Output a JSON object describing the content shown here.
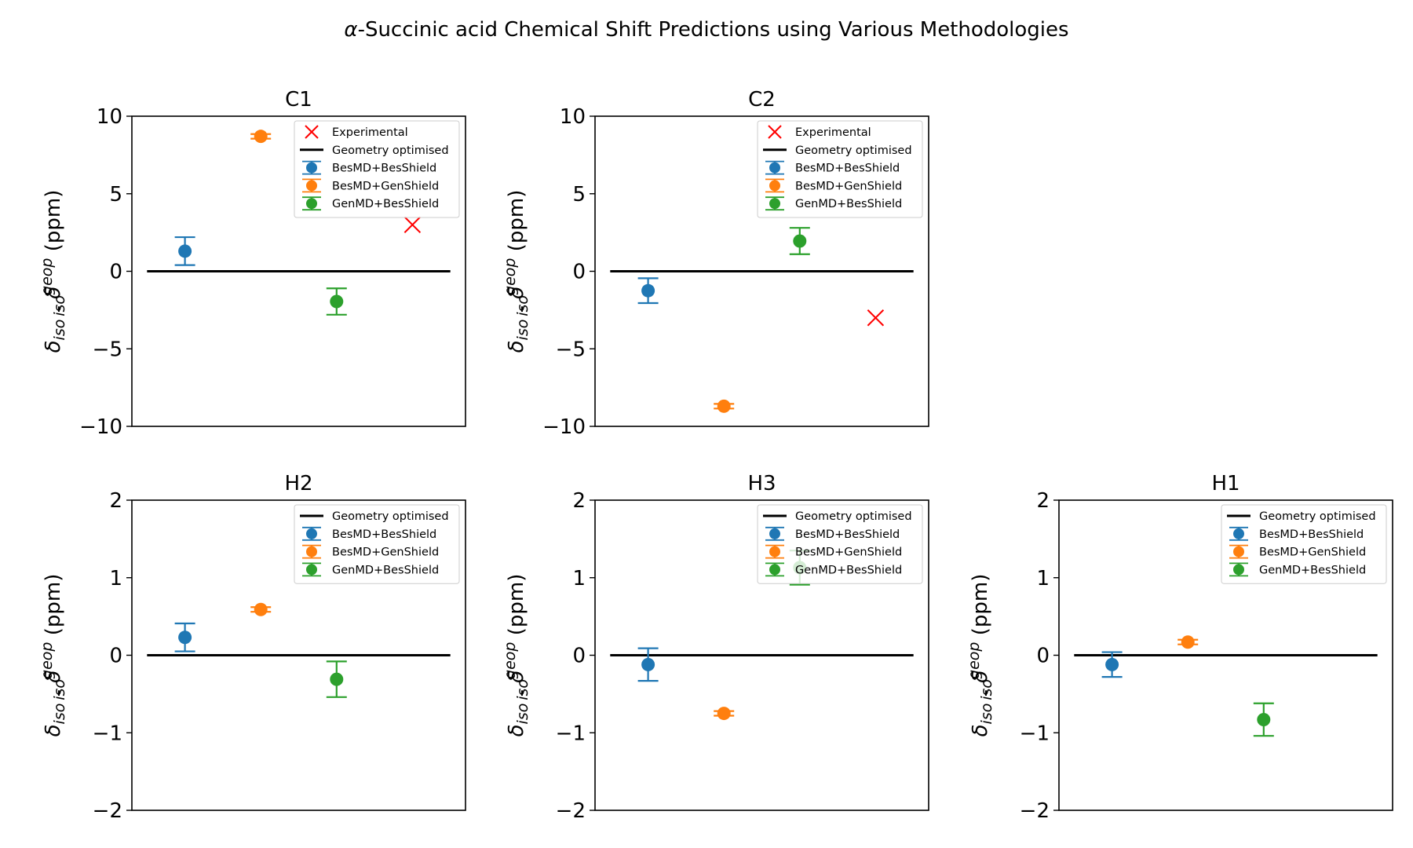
{
  "figure": {
    "title": "-Succinic acid Chemical Shift Predictions using Various Methodologies",
    "title_symbol": "α",
    "ylabel": {
      "delta": "δ",
      "sub": "iso",
      "sep": " - ",
      "sup": "geop",
      "unit": " (ppm)"
    }
  },
  "colors": {
    "BesMD+BesShield": "#1f77b4",
    "BesMD+GenShield": "#ff7f0e",
    "GenMD+BesShield": "#2ca02c",
    "Experimental": "#ff0000",
    "Geometry optimised": "#000000"
  },
  "chart_data": [
    {
      "title": "C1",
      "type": "scatter",
      "ylim": [
        -10,
        10
      ],
      "yticks": [
        -10,
        -5,
        0,
        5,
        10
      ],
      "xlim": [
        -0.7,
        3.7
      ],
      "grid": false,
      "legend_position": "upper right",
      "legend": [
        "Experimental",
        "Geometry optimised",
        "BesMD+BesShield",
        "BesMD+GenShield",
        "GenMD+BesShield"
      ],
      "reference_line": {
        "name": "Geometry optimised",
        "y": 0,
        "x_range": [
          -0.5,
          3.5
        ]
      },
      "experimental": {
        "x": 3,
        "y": 3.0
      },
      "series": [
        {
          "name": "BesMD+BesShield",
          "x": 0,
          "y": 1.3,
          "err": 0.9
        },
        {
          "name": "BesMD+GenShield",
          "x": 1,
          "y": 8.7,
          "err": 0.15
        },
        {
          "name": "GenMD+BesShield",
          "x": 2,
          "y": -1.95,
          "err": 0.85
        }
      ]
    },
    {
      "title": "C2",
      "type": "scatter",
      "ylim": [
        -10,
        10
      ],
      "yticks": [
        -10,
        -5,
        0,
        5,
        10
      ],
      "xlim": [
        -0.7,
        3.7
      ],
      "grid": false,
      "legend_position": "upper right",
      "legend": [
        "Experimental",
        "Geometry optimised",
        "BesMD+BesShield",
        "BesMD+GenShield",
        "GenMD+BesShield"
      ],
      "reference_line": {
        "name": "Geometry optimised",
        "y": 0,
        "x_range": [
          -0.5,
          3.5
        ]
      },
      "experimental": {
        "x": 3,
        "y": -3.0
      },
      "series": [
        {
          "name": "BesMD+BesShield",
          "x": 0,
          "y": -1.25,
          "err": 0.8
        },
        {
          "name": "BesMD+GenShield",
          "x": 1,
          "y": -8.7,
          "err": 0.15
        },
        {
          "name": "GenMD+BesShield",
          "x": 2,
          "y": 1.95,
          "err": 0.85
        }
      ]
    },
    {
      "title": "H2",
      "type": "scatter",
      "ylim": [
        -2,
        2
      ],
      "yticks": [
        -2,
        -1,
        0,
        1,
        2
      ],
      "xlim": [
        -0.7,
        3.7
      ],
      "grid": false,
      "legend_position": "upper right",
      "legend": [
        "Geometry optimised",
        "BesMD+BesShield",
        "BesMD+GenShield",
        "GenMD+BesShield"
      ],
      "reference_line": {
        "name": "Geometry optimised",
        "y": 0,
        "x_range": [
          -0.5,
          3.5
        ]
      },
      "series": [
        {
          "name": "BesMD+BesShield",
          "x": 0,
          "y": 0.23,
          "err": 0.18
        },
        {
          "name": "BesMD+GenShield",
          "x": 1,
          "y": 0.59,
          "err": 0.03
        },
        {
          "name": "GenMD+BesShield",
          "x": 2,
          "y": -0.31,
          "err": 0.23
        }
      ]
    },
    {
      "title": "H3",
      "type": "scatter",
      "ylim": [
        -2,
        2
      ],
      "yticks": [
        -2,
        -1,
        0,
        1,
        2
      ],
      "xlim": [
        -0.7,
        3.7
      ],
      "grid": false,
      "legend_position": "upper right",
      "legend": [
        "Geometry optimised",
        "BesMD+BesShield",
        "BesMD+GenShield",
        "GenMD+BesShield"
      ],
      "reference_line": {
        "name": "Geometry optimised",
        "y": 0,
        "x_range": [
          -0.5,
          3.5
        ]
      },
      "series": [
        {
          "name": "BesMD+BesShield",
          "x": 0,
          "y": -0.12,
          "err": 0.21
        },
        {
          "name": "BesMD+GenShield",
          "x": 1,
          "y": -0.75,
          "err": 0.03
        },
        {
          "name": "GenMD+BesShield",
          "x": 2,
          "y": 1.13,
          "err": 0.22
        }
      ]
    },
    {
      "title": "H1",
      "type": "scatter",
      "ylim": [
        -2,
        2
      ],
      "yticks": [
        -2,
        -1,
        0,
        1,
        2
      ],
      "xlim": [
        -0.7,
        3.7
      ],
      "grid": false,
      "legend_position": "upper right",
      "legend": [
        "Geometry optimised",
        "BesMD+BesShield",
        "BesMD+GenShield",
        "GenMD+BesShield"
      ],
      "reference_line": {
        "name": "Geometry optimised",
        "y": 0,
        "x_range": [
          -0.5,
          3.5
        ]
      },
      "series": [
        {
          "name": "BesMD+BesShield",
          "x": 0,
          "y": -0.12,
          "err": 0.16
        },
        {
          "name": "BesMD+GenShield",
          "x": 1,
          "y": 0.17,
          "err": 0.03
        },
        {
          "name": "GenMD+BesShield",
          "x": 2,
          "y": -0.83,
          "err": 0.21
        }
      ]
    }
  ]
}
